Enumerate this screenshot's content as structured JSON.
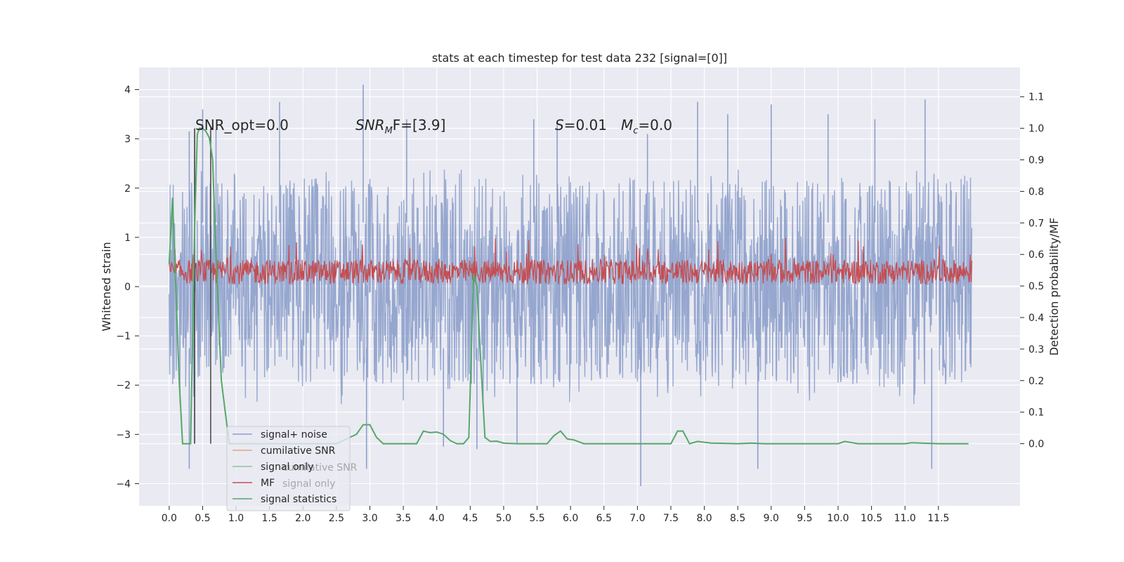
{
  "chart_data": {
    "type": "line",
    "title": "stats at each timestep for test data 232 [signal=[0]]",
    "ylabel": "Whitened strain",
    "y2label": "Detection probability/MF",
    "xlim": [
      -0.45,
      12.72
    ],
    "ylim": [
      -4.45,
      4.45
    ],
    "y2lim": [
      -0.197,
      1.193
    ],
    "x_ticks": [
      "0.0",
      "0.5",
      "1.0",
      "1.5",
      "2.0",
      "2.5",
      "3.0",
      "3.5",
      "4.0",
      "4.5",
      "5.0",
      "5.5",
      "6.0",
      "6.5",
      "7.0",
      "7.5",
      "8.0",
      "8.5",
      "9.0",
      "9.5",
      "10.0",
      "10.5",
      "11.0",
      "11.5"
    ],
    "y_ticks": [
      "4",
      "3",
      "2",
      "1",
      "0",
      "−1",
      "−2",
      "−3",
      "−4"
    ],
    "y2_ticks": [
      "1.1",
      "1.0",
      "0.9",
      "0.8",
      "0.7",
      "0.6",
      "0.5",
      "0.4",
      "0.3",
      "0.2",
      "0.1",
      "0.0"
    ],
    "annotations": {
      "snr_opt": "SNR_opt=0.0",
      "snr_mf_var": "SNR",
      "snr_mf_sub": "M",
      "snr_mf_rest": "F=[3.9]",
      "s_var": "S",
      "s_rest": "=0.01",
      "mc_var": "M",
      "mc_sub": "c",
      "mc_rest": "=0.0"
    },
    "legend": {
      "placement": "lower-left",
      "entries": [
        {
          "label": "signal+ noise",
          "color": "#8da0cb"
        },
        {
          "label": "cumilative SNR",
          "color": "#e1a684"
        },
        {
          "label": "signal only",
          "color": "#8cc496"
        },
        {
          "label": "MF",
          "color": "#c44e52"
        },
        {
          "label": "signal statistics",
          "color": "#55a868"
        }
      ],
      "ghost_labels": [
        "cumilative SNR",
        "signal only"
      ]
    },
    "grid": true,
    "series": [
      {
        "name": "signal+ noise",
        "kind": "dense-noise",
        "axis": "left",
        "color": "#8da0cb",
        "x_range": [
          0.0,
          12.0
        ],
        "core_band": [
          -1.25,
          1.3
        ],
        "typical_envelope": [
          -2.0,
          2.2
        ],
        "peaks": [
          {
            "x": 0.3,
            "y": 3.15
          },
          {
            "x": 0.5,
            "y": 3.6
          },
          {
            "x": 0.7,
            "y": 3.2
          },
          {
            "x": 1.65,
            "y": 3.75
          },
          {
            "x": 2.9,
            "y": 4.1
          },
          {
            "x": 3.55,
            "y": 3.4
          },
          {
            "x": 5.45,
            "y": 3.4
          },
          {
            "x": 5.8,
            "y": 3.3
          },
          {
            "x": 7.15,
            "y": 3.1
          },
          {
            "x": 7.9,
            "y": 3.75
          },
          {
            "x": 8.35,
            "y": 3.5
          },
          {
            "x": 9.0,
            "y": 3.7
          },
          {
            "x": 9.85,
            "y": 3.5
          },
          {
            "x": 10.55,
            "y": 3.4
          },
          {
            "x": 11.3,
            "y": 3.8
          },
          {
            "x": 0.3,
            "y": -3.7
          },
          {
            "x": 2.95,
            "y": -3.7
          },
          {
            "x": 7.05,
            "y": -4.05
          },
          {
            "x": 8.8,
            "y": -3.7
          },
          {
            "x": 11.4,
            "y": -3.7
          },
          {
            "x": 4.1,
            "y": -3.25
          },
          {
            "x": 4.6,
            "y": -3.3
          },
          {
            "x": 5.2,
            "y": -3.2
          }
        ]
      },
      {
        "name": "MF",
        "kind": "dense-noise",
        "axis": "left",
        "color": "#c44e52",
        "x_range": [
          0.0,
          12.0
        ],
        "base": 0.05,
        "typical_top": 0.55,
        "max": 1.0
      },
      {
        "name": "signal statistics",
        "kind": "line",
        "axis": "right",
        "color": "#55a868",
        "x": [
          0.0,
          0.05,
          0.1,
          0.15,
          0.2,
          0.25,
          0.32,
          0.38,
          0.42,
          0.45,
          0.5,
          0.55,
          0.6,
          0.65,
          0.7,
          0.78,
          0.85,
          0.9,
          1.0,
          1.2,
          1.6,
          2.0,
          2.5,
          2.8,
          2.9,
          3.0,
          3.1,
          3.2,
          3.4,
          3.7,
          3.8,
          3.9,
          4.0,
          4.1,
          4.2,
          4.3,
          4.4,
          4.48,
          4.55,
          4.6,
          4.66,
          4.72,
          4.8,
          4.9,
          5.0,
          5.2,
          5.5,
          5.65,
          5.75,
          5.85,
          5.95,
          6.05,
          6.2,
          6.4,
          7.0,
          7.5,
          7.6,
          7.68,
          7.78,
          7.9,
          8.1,
          8.5,
          8.7,
          8.9,
          9.5,
          10.0,
          10.1,
          10.3,
          11.0,
          11.1,
          11.5,
          11.95
        ],
        "y": [
          0.57,
          0.78,
          0.49,
          0.2,
          0.0,
          0.0,
          0.0,
          0.68,
          0.98,
          1.0,
          1.0,
          0.99,
          0.97,
          0.9,
          0.6,
          0.2,
          0.08,
          0.0,
          0.0,
          0.0,
          0.0,
          0.0,
          0.0,
          0.03,
          0.06,
          0.06,
          0.02,
          0.0,
          0.0,
          0.0,
          0.04,
          0.035,
          0.037,
          0.03,
          0.01,
          0.0,
          0.0,
          0.02,
          0.54,
          0.5,
          0.25,
          0.02,
          0.007,
          0.008,
          0.002,
          0.0,
          0.0,
          0.0,
          0.025,
          0.04,
          0.015,
          0.012,
          0.0,
          0.0,
          0.0,
          0.0,
          0.04,
          0.04,
          0.0,
          0.007,
          0.002,
          0.0,
          0.002,
          0.0,
          0.0,
          0.0,
          0.007,
          0.0,
          0.0,
          0.003,
          0.0,
          0.0
        ]
      }
    ],
    "markers": [
      {
        "x": 0.38,
        "y_from": 0.0,
        "y_to": 1.0,
        "color": "#333333"
      },
      {
        "x": 0.62,
        "y_from": 0.0,
        "y_to": 1.0,
        "color": "#444444"
      }
    ]
  }
}
